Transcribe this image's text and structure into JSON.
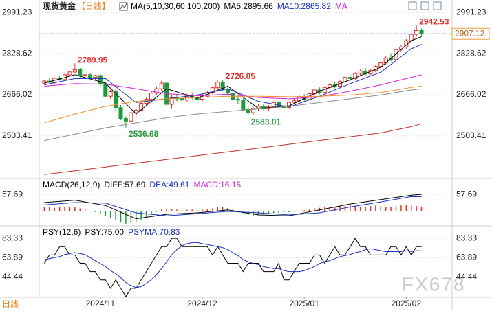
{
  "header": {
    "title": "现货黄金",
    "period": "【日线】"
  },
  "watermark": "FX678",
  "footer_period": "日线",
  "chart_data": [
    {
      "type": "candlestick",
      "xlim": [
        -1,
        80
      ],
      "ylim": [
        2340,
        3030
      ],
      "yticks": [
        2503.41,
        2666.02,
        2828.62,
        2991.23
      ],
      "grid": true,
      "up_color": "#e0302a",
      "down_color": "#1e9a3c",
      "legend": [
        {
          "text": "MA(5,10,30,60,100,200)",
          "color": "#000000"
        },
        {
          "text": "MA5:2895.66",
          "color": "#000000"
        },
        {
          "text": "MA10:2865.82",
          "color": "#1a2fc0"
        },
        {
          "text": "MA",
          "color": "#d81fd8"
        }
      ],
      "candles": [
        [
          2712,
          2725,
          2705,
          2720
        ],
        [
          2720,
          2730,
          2712,
          2715
        ],
        [
          2715,
          2735,
          2710,
          2731
        ],
        [
          2731,
          2740,
          2722,
          2726
        ],
        [
          2726,
          2750,
          2720,
          2745
        ],
        [
          2745,
          2760,
          2738,
          2756
        ],
        [
          2756,
          2789.95,
          2750,
          2765
        ],
        [
          2765,
          2772,
          2735,
          2742
        ],
        [
          2742,
          2750,
          2730,
          2745
        ],
        [
          2745,
          2752,
          2728,
          2735
        ],
        [
          2735,
          2745,
          2725,
          2742
        ],
        [
          2742,
          2748,
          2700,
          2710
        ],
        [
          2710,
          2715,
          2655,
          2660
        ],
        [
          2660,
          2685,
          2650,
          2678
        ],
        [
          2678,
          2690,
          2600,
          2615
        ],
        [
          2615,
          2625,
          2565,
          2572
        ],
        [
          2572,
          2580,
          2536.68,
          2562
        ],
        [
          2562,
          2600,
          2555,
          2595
        ],
        [
          2595,
          2612,
          2580,
          2605
        ],
        [
          2605,
          2640,
          2600,
          2632
        ],
        [
          2632,
          2655,
          2620,
          2648
        ],
        [
          2648,
          2680,
          2640,
          2672
        ],
        [
          2672,
          2700,
          2665,
          2690
        ],
        [
          2690,
          2721,
          2680,
          2712
        ],
        [
          2712,
          2718,
          2620,
          2628
        ],
        [
          2628,
          2665,
          2610,
          2655
        ],
        [
          2655,
          2668,
          2640,
          2650
        ],
        [
          2650,
          2662,
          2630,
          2645
        ],
        [
          2645,
          2670,
          2640,
          2662
        ],
        [
          2662,
          2675,
          2648,
          2655
        ],
        [
          2655,
          2668,
          2640,
          2648
        ],
        [
          2648,
          2672,
          2640,
          2660
        ],
        [
          2660,
          2680,
          2655,
          2675
        ],
        [
          2675,
          2700,
          2668,
          2694
        ],
        [
          2694,
          2722,
          2690,
          2716
        ],
        [
          2716,
          2726.05,
          2680,
          2688
        ],
        [
          2688,
          2695,
          2665,
          2672
        ],
        [
          2672,
          2680,
          2640,
          2648
        ],
        [
          2648,
          2660,
          2630,
          2645
        ],
        [
          2645,
          2652,
          2600,
          2608
        ],
        [
          2608,
          2625,
          2583.01,
          2595
        ],
        [
          2595,
          2618,
          2588,
          2612
        ],
        [
          2612,
          2628,
          2600,
          2620
        ],
        [
          2620,
          2630,
          2605,
          2610
        ],
        [
          2610,
          2625,
          2600,
          2618
        ],
        [
          2618,
          2640,
          2612,
          2635
        ],
        [
          2635,
          2642,
          2615,
          2622
        ],
        [
          2622,
          2630,
          2605,
          2615
        ],
        [
          2615,
          2640,
          2610,
          2636
        ],
        [
          2636,
          2650,
          2628,
          2642
        ],
        [
          2642,
          2665,
          2635,
          2658
        ],
        [
          2658,
          2668,
          2640,
          2648
        ],
        [
          2648,
          2675,
          2645,
          2670
        ],
        [
          2670,
          2690,
          2662,
          2685
        ],
        [
          2685,
          2695,
          2668,
          2675
        ],
        [
          2675,
          2700,
          2670,
          2695
        ],
        [
          2695,
          2712,
          2688,
          2705
        ],
        [
          2705,
          2718,
          2692,
          2700
        ],
        [
          2700,
          2725,
          2695,
          2718
        ],
        [
          2718,
          2740,
          2712,
          2735
        ],
        [
          2735,
          2748,
          2720,
          2730
        ],
        [
          2730,
          2755,
          2725,
          2750
        ],
        [
          2750,
          2766,
          2742,
          2760
        ],
        [
          2760,
          2772,
          2740,
          2748
        ],
        [
          2748,
          2768,
          2744,
          2762
        ],
        [
          2762,
          2785,
          2755,
          2778
        ],
        [
          2778,
          2798,
          2770,
          2792
        ],
        [
          2792,
          2818,
          2785,
          2812
        ],
        [
          2812,
          2830,
          2798,
          2805
        ],
        [
          2805,
          2852,
          2800,
          2845
        ],
        [
          2845,
          2862,
          2835,
          2855
        ],
        [
          2855,
          2886,
          2848,
          2880
        ],
        [
          2880,
          2912,
          2872,
          2905
        ],
        [
          2905,
          2942.53,
          2898,
          2920
        ],
        [
          2920,
          2928,
          2900,
          2907.12
        ]
      ],
      "series": [
        {
          "name": "MA5",
          "color": "#000000",
          "x": [
            0,
            6,
            12,
            18,
            24,
            30,
            36,
            42,
            48,
            54,
            60,
            66,
            72,
            74
          ],
          "values": [
            2712,
            2745,
            2712,
            2590,
            2690,
            2652,
            2700,
            2612,
            2622,
            2680,
            2725,
            2775,
            2880,
            2895.66
          ]
        },
        {
          "name": "MA10",
          "color": "#1a2fc0",
          "x": [
            0,
            6,
            12,
            18,
            24,
            30,
            36,
            42,
            48,
            54,
            60,
            66,
            72,
            74
          ],
          "values": [
            2705,
            2730,
            2730,
            2635,
            2650,
            2665,
            2690,
            2640,
            2618,
            2660,
            2710,
            2755,
            2848,
            2865.82
          ]
        },
        {
          "name": "MA30",
          "color": "#d81fd8",
          "x": [
            0,
            6,
            12,
            18,
            24,
            30,
            36,
            42,
            48,
            54,
            60,
            66,
            72,
            74
          ],
          "values": [
            2700,
            2710,
            2708,
            2690,
            2670,
            2662,
            2668,
            2655,
            2650,
            2658,
            2680,
            2705,
            2735,
            2745
          ]
        },
        {
          "name": "MA60",
          "color": "#f0902a",
          "x": [
            0,
            6,
            12,
            18,
            24,
            30,
            36,
            42,
            48,
            54,
            60,
            66,
            72,
            74
          ],
          "values": [
            2555,
            2590,
            2620,
            2640,
            2650,
            2655,
            2660,
            2660,
            2658,
            2660,
            2665,
            2675,
            2695,
            2700
          ]
        },
        {
          "name": "MA100",
          "color": "#8a8a8a",
          "x": [
            0,
            6,
            12,
            18,
            24,
            30,
            36,
            42,
            48,
            54,
            60,
            66,
            72,
            74
          ],
          "values": [
            2485,
            2510,
            2535,
            2555,
            2575,
            2590,
            2600,
            2610,
            2620,
            2635,
            2650,
            2665,
            2685,
            2690
          ]
        },
        {
          "name": "MA200",
          "color": "#c0302a",
          "x": [
            0,
            6,
            12,
            18,
            24,
            30,
            36,
            42,
            48,
            54,
            60,
            66,
            72,
            74
          ],
          "values": [
            2350,
            2365,
            2380,
            2395,
            2410,
            2425,
            2440,
            2455,
            2470,
            2485,
            2500,
            2515,
            2540,
            2551
          ]
        }
      ],
      "annotations": [
        {
          "x": 6,
          "value": 2789.95,
          "color": "#e0302a",
          "side": "above"
        },
        {
          "x": 16,
          "value": 2536.68,
          "color": "#2a9a3c",
          "side": "below"
        },
        {
          "x": 35,
          "value": 2726.05,
          "color": "#e0302a",
          "side": "above"
        },
        {
          "x": 40,
          "value": 2583.01,
          "color": "#2a9a3c",
          "side": "below"
        },
        {
          "x": 73,
          "value": 2942.53,
          "color": "#e0302a",
          "side": "above"
        }
      ],
      "last_price": 2907.12
    },
    {
      "type": "macd",
      "xlim": [
        -1,
        80
      ],
      "ylim": [
        -40,
        100
      ],
      "yticks": [
        57.69
      ],
      "legend": [
        {
          "text": "MACD(26,12,9)",
          "color": "#000000"
        },
        {
          "text": "DIFF:57.69",
          "color": "#000000"
        },
        {
          "text": "DEA:49.61",
          "color": "#1a2fc0"
        },
        {
          "text": "MACD:16.15",
          "color": "#d81fd8"
        }
      ],
      "histogram": [
        16,
        14,
        12,
        15,
        16,
        16,
        16,
        10,
        6,
        2,
        -2,
        -8,
        -16,
        -22,
        -30,
        -38,
        -42,
        -40,
        -35,
        -28,
        -20,
        -10,
        -2,
        6,
        10,
        8,
        6,
        4,
        5,
        6,
        4,
        6,
        8,
        10,
        14,
        16,
        12,
        8,
        2,
        -6,
        -12,
        -14,
        -12,
        -10,
        -8,
        -6,
        -5,
        -4,
        -3,
        -1,
        2,
        4,
        6,
        10,
        12,
        14,
        14,
        16,
        18,
        20,
        20,
        18,
        16,
        16,
        18,
        20,
        18,
        16,
        14,
        18,
        20,
        22,
        20,
        18,
        16.15
      ],
      "series": [
        {
          "name": "DIFF",
          "color": "#000000",
          "x": [
            0,
            6,
            12,
            18,
            24,
            30,
            36,
            42,
            48,
            54,
            60,
            66,
            72,
            74
          ],
          "values": [
            30,
            38,
            20,
            -25,
            -10,
            -5,
            5,
            -12,
            -15,
            5,
            25,
            40,
            55,
            57.69
          ]
        },
        {
          "name": "DEA",
          "color": "#1a2fc0",
          "x": [
            0,
            6,
            12,
            18,
            24,
            30,
            36,
            42,
            48,
            54,
            60,
            66,
            72,
            74
          ],
          "values": [
            22,
            30,
            28,
            -5,
            -15,
            -8,
            0,
            -5,
            -12,
            -5,
            15,
            32,
            50,
            49.61
          ]
        }
      ]
    },
    {
      "type": "line",
      "xlim": [
        -1,
        80
      ],
      "ylim": [
        25,
        91.67
      ],
      "yticks": [
        44.44,
        63.89,
        83.33
      ],
      "xticks": [
        {
          "value": 11,
          "label": "2024/11"
        },
        {
          "value": 31,
          "label": "2024/12"
        },
        {
          "value": 51,
          "label": "2025/01"
        },
        {
          "value": 71,
          "label": "2025/02"
        }
      ],
      "legend": [
        {
          "text": "PSY(12,6)",
          "color": "#000000"
        },
        {
          "text": "PSY:75.00",
          "color": "#000000"
        },
        {
          "text": "PSYMA:70.83",
          "color": "#1a2fc0"
        }
      ],
      "series": [
        {
          "name": "PSY",
          "color": "#000000",
          "values": [
            58.33,
            66.67,
            66.67,
            75,
            75,
            66.67,
            66.67,
            58.33,
            58.33,
            50,
            50,
            41.67,
            41.67,
            33.33,
            41.67,
            33.33,
            25,
            33.33,
            33.33,
            41.67,
            50,
            58.33,
            66.67,
            75,
            75,
            83.33,
            83.33,
            75,
            75,
            75,
            75,
            75,
            75,
            66.67,
            75,
            66.67,
            58.33,
            58.33,
            58.33,
            50,
            58.33,
            58.33,
            58.33,
            50,
            50,
            50,
            58.33,
            41.67,
            41.67,
            50,
            58.33,
            58.33,
            58.33,
            66.67,
            66.67,
            58.33,
            66.67,
            75,
            66.67,
            66.67,
            75,
            83.33,
            75,
            75,
            66.67,
            66.67,
            66.67,
            66.67,
            75,
            75,
            66.67,
            75,
            66.67,
            75,
            75
          ]
        },
        {
          "name": "PSYMA",
          "color": "#1a2fc0",
          "values": [
            62,
            63,
            64,
            65,
            67,
            68,
            69,
            68,
            67,
            64,
            61,
            58,
            55,
            51,
            48,
            44,
            39,
            36,
            34,
            35,
            38,
            42,
            47,
            53,
            60,
            67,
            72,
            76,
            78,
            79,
            79,
            78,
            77,
            76,
            75,
            74,
            72,
            69,
            66,
            62,
            60,
            58,
            57,
            55,
            54,
            53,
            53,
            51,
            50,
            50,
            50,
            51,
            53,
            55,
            58,
            60,
            61,
            63,
            65,
            66,
            67,
            69,
            70,
            72,
            73,
            72,
            71,
            70,
            70,
            70,
            70,
            71,
            70,
            71,
            70.83
          ]
        }
      ]
    }
  ]
}
